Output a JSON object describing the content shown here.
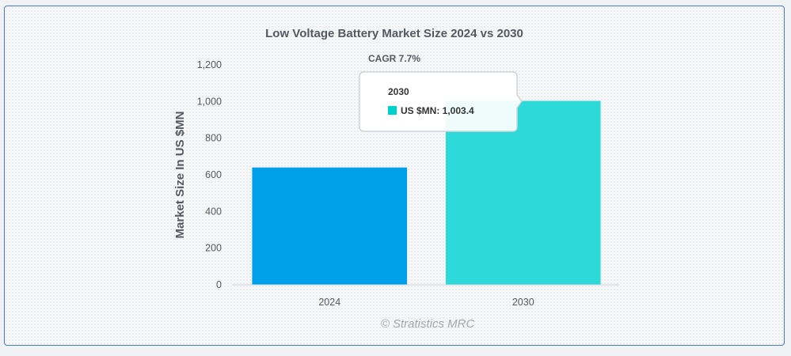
{
  "chart_data": {
    "type": "bar",
    "title": "Low Voltage Battery Market Size 2024 vs 2030",
    "annotation": "CAGR 7.7%",
    "xlabel": "",
    "ylabel": "Market Size In US $MN",
    "categories": [
      "2024",
      "2030"
    ],
    "values": [
      640,
      1003.4
    ],
    "colors": [
      "#009fea",
      "#2ed9d9"
    ],
    "ylim": [
      0,
      1200
    ],
    "yticks": [
      "0",
      "200",
      "400",
      "600",
      "800",
      "1,000",
      "1,200"
    ],
    "grid": false,
    "tooltip": {
      "title": "2030",
      "series_label": "US $MN",
      "value": "1,003.4",
      "text": "US $MN: 1,003.4"
    },
    "credit": "© Stratistics MRC"
  }
}
